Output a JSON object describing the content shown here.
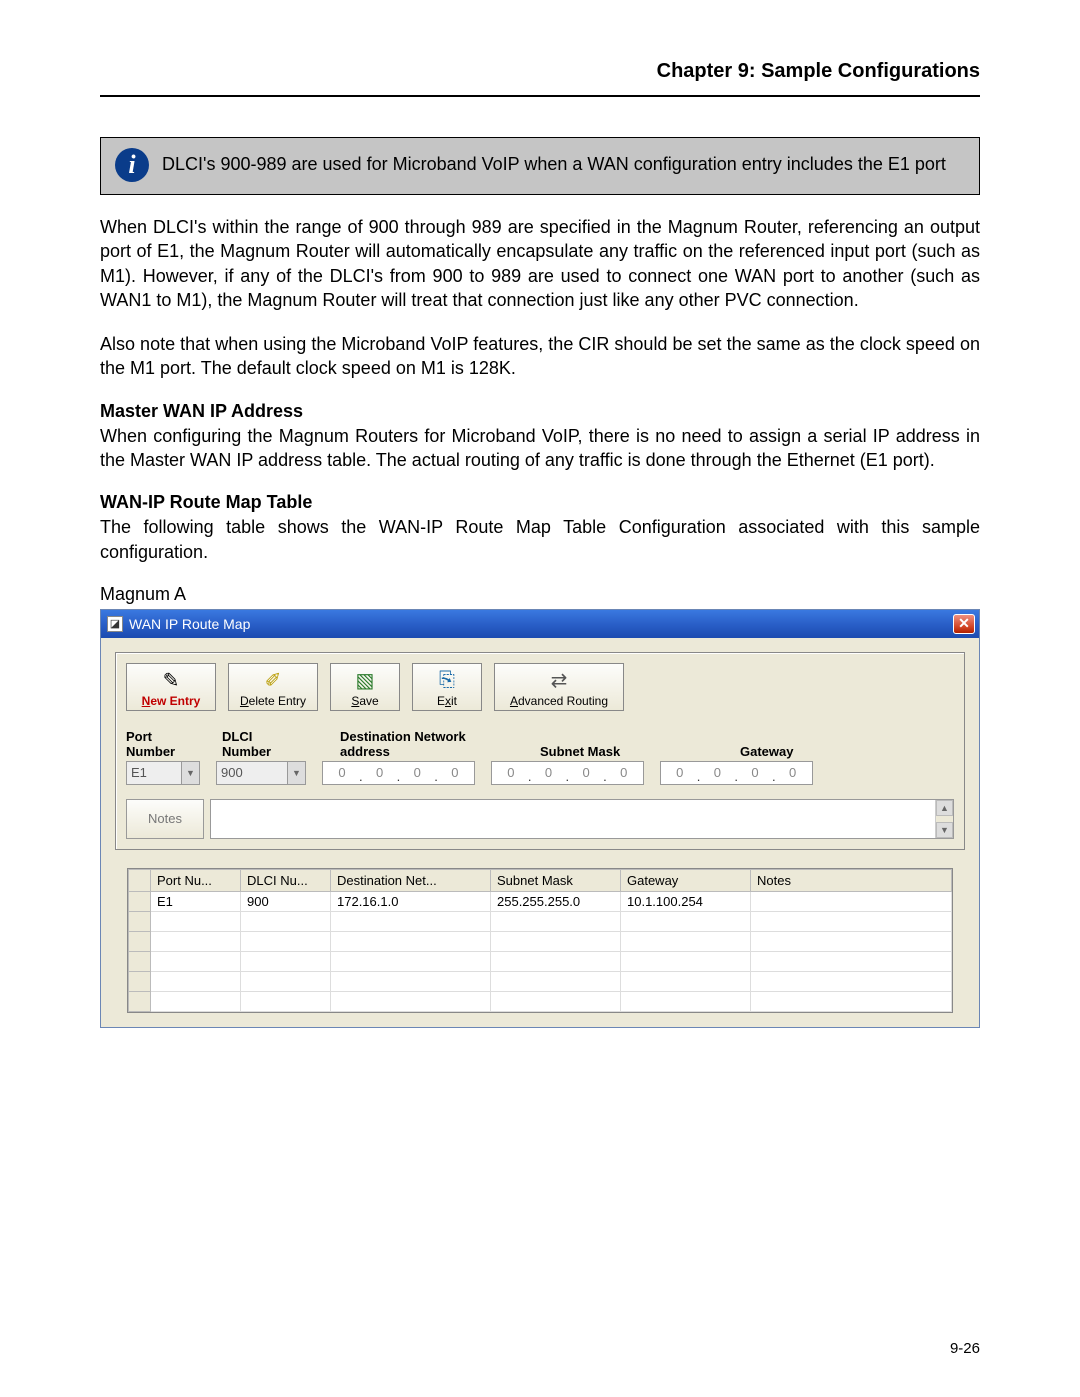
{
  "chapter_title": "Chapter 9: Sample Configurations",
  "info_box": "DLCI's 900-989 are used for Microband VoIP when a WAN configuration entry includes the E1 port",
  "para1": "When DLCI's within the range of 900 through 989 are specified in the Magnum Router, referencing an output port of E1, the Magnum Router will automatically encapsulate any traffic on the referenced input port (such as M1).  However, if any of the DLCI's from 900 to 989 are used to connect one WAN port to another (such as WAN1 to M1), the Magnum Router will treat that connection just like any other PVC connection.",
  "para2": "Also note that when using the Microband VoIP features, the CIR should be set the same as the clock speed on the M1 port.  The default clock speed on M1 is 128K.",
  "sec1_head": "Master WAN IP Address",
  "sec1_body": "When configuring the Magnum Routers for Microband VoIP, there is no need to assign a serial IP address in the Master WAN IP address table.  The actual routing of any traffic is done through the Ethernet (E1 port).",
  "sec2_head": "WAN-IP Route Map Table",
  "sec2_body": "The following table shows the WAN-IP Route Map Table Configuration associated with this sample configuration.",
  "magnum_label": "Magnum A",
  "window": {
    "title": "WAN IP Route Map",
    "toolbar": {
      "new_entry": "New Entry",
      "delete_entry": "Delete Entry",
      "save": "Save",
      "exit": "Exit",
      "advanced": "Advanced Routing"
    },
    "field_labels": {
      "port1": "Port",
      "port2": "Number",
      "dlci1": "DLCI",
      "dlci2": "Number",
      "dest1": "Destination Network",
      "dest2": "address",
      "mask": "Subnet Mask",
      "gw": "Gateway"
    },
    "inputs": {
      "port": "E1",
      "dlci": "900",
      "dest": [
        "0",
        "0",
        "0",
        "0"
      ],
      "mask": [
        "0",
        "0",
        "0",
        "0"
      ],
      "gw": [
        "0",
        "0",
        "0",
        "0"
      ]
    },
    "notes_label": "Notes",
    "grid": {
      "columns": [
        "Port Nu...",
        "DLCI Nu...",
        "Destination Net...",
        "Subnet Mask",
        "Gateway",
        "Notes"
      ],
      "rows": [
        [
          "E1",
          "900",
          "172.16.1.0",
          "255.255.255.0",
          "10.1.100.254",
          ""
        ]
      ],
      "empty_rows": 5,
      "col_widths": [
        "22px",
        "90px",
        "90px",
        "160px",
        "130px",
        "130px",
        "auto"
      ]
    }
  },
  "page_number": "9-26",
  "colors": {
    "page_bg": "#ffffff",
    "info_bg": "#c5c5c5",
    "titlebar_start": "#3a79e0",
    "titlebar_end": "#1c4bb0",
    "window_bg": "#ece9d8",
    "close_btn": "#d04020",
    "red_text": "#c00000",
    "info_icon_bg": "#0a3c8a"
  }
}
